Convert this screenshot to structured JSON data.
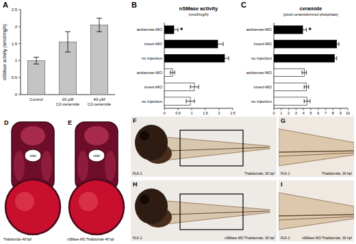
{
  "chart_data": [
    {
      "panel_label": "A",
      "type": "bar",
      "y_label": "nSMase activity (nmol/mg/h)",
      "categories": [
        "Control",
        "20 μM C2-ceramide",
        "40 μM C2-ceramide"
      ],
      "values": [
        1.0,
        1.55,
        2.05
      ],
      "errors": [
        0.1,
        0.3,
        0.2
      ],
      "color": "#c4c4c4",
      "ylim": [
        0,
        2.5
      ],
      "yticks": [
        0,
        0.5,
        1,
        1.5,
        2,
        2.5
      ]
    },
    {
      "panel_label": "B",
      "type": "bar",
      "orientation": "horizontal",
      "title": "nSMase activity",
      "subtitle": "(nmol/mg/h)",
      "categories": [
        "antisense-MO",
        "invert-MO",
        "no injection",
        "antisense-MO",
        "invert-MO",
        "no injection"
      ],
      "values": [
        0.35,
        1.95,
        2.2,
        0.3,
        1.1,
        0.95
      ],
      "errors": [
        0.15,
        0.2,
        0.15,
        0.08,
        0.15,
        0.15
      ],
      "colors": [
        "#000000",
        "#000000",
        "#000000",
        "#ffffff",
        "#ffffff",
        "#ffffff"
      ],
      "xlim": [
        0,
        2.5
      ],
      "xticks": [
        0,
        0.5,
        1,
        1.5,
        2,
        2.5
      ],
      "annotations": [
        {
          "text": "*",
          "index": 0
        }
      ]
    },
    {
      "panel_label": "C",
      "type": "bar",
      "orientation": "horizontal",
      "title": "ceramide",
      "subtitle": "(pmol ceramide/nmol phosphate)",
      "categories": [
        "antisense-MO",
        "invert-MO",
        "no injection",
        "antisense-MO",
        "invert-MO",
        "no injection"
      ],
      "values": [
        3.9,
        8.5,
        8.2,
        4.1,
        4.4,
        4.5
      ],
      "errors": [
        0.5,
        0.3,
        0.3,
        0.3,
        0.3,
        0.4
      ],
      "colors": [
        "#000000",
        "#000000",
        "#000000",
        "#ffffff",
        "#ffffff",
        "#ffffff"
      ],
      "xlim": [
        0,
        10
      ],
      "xticks": [
        0,
        1,
        2,
        3,
        4,
        5,
        6,
        7,
        8,
        9,
        10
      ],
      "annotations": [
        {
          "text": "*",
          "index": 0
        }
      ]
    }
  ],
  "images": [
    {
      "panel_label": "D",
      "region_label": "noto",
      "caption": "Thalidomide 48 hpf"
    },
    {
      "panel_label": "E",
      "region_label": "noto",
      "caption": "nSMase MO Thalidomide 48 hpf"
    },
    {
      "panel_label": "F",
      "stain": "FLK-1",
      "caption": "Thalidomide, 30 hpf"
    },
    {
      "panel_label": "G",
      "stain": "FLK-1",
      "caption": "Thalidomide, 30 hpf"
    },
    {
      "panel_label": "H",
      "stain": "FLK-1",
      "caption": "nSMase MO Thalidomide, 30 hpf"
    },
    {
      "panel_label": "I",
      "stain": "FLK-1",
      "caption": "nSMase MO Thalidomide, 30 hpf"
    }
  ]
}
